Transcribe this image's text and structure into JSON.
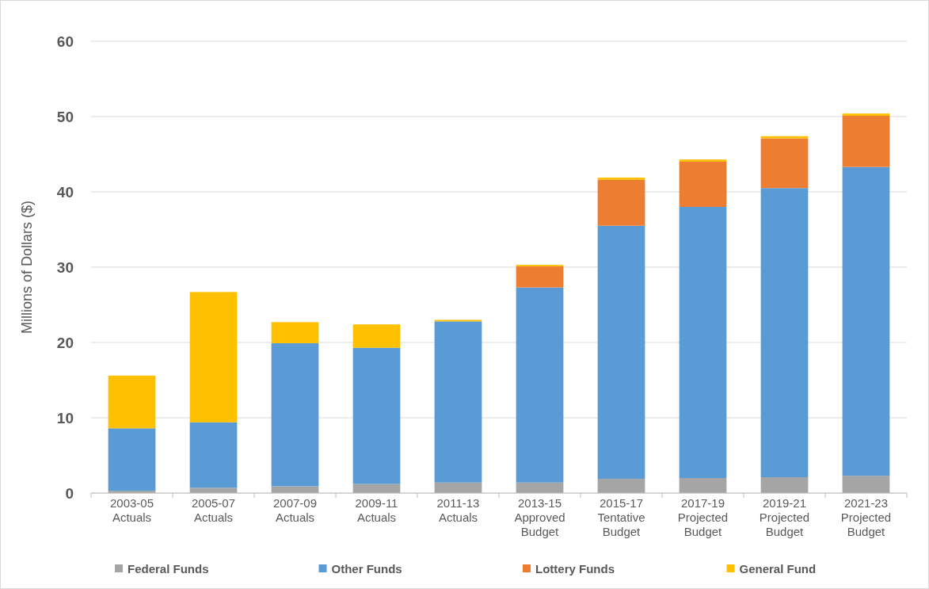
{
  "chart_data": {
    "type": "bar",
    "stacked": true,
    "ylabel": "Millions of Dollars ($)",
    "categories": [
      "2003-05\nActuals",
      "2005-07\nActuals",
      "2007-09\nActuals",
      "2009-11\nActuals",
      "2011-13\nActuals",
      "2013-15\nApproved\nBudget",
      "2015-17\nTentative\nBudget",
      "2017-19\nProjected\nBudget",
      "2019-21\nProjected\nBudget",
      "2021-23\nProjected\nBudget"
    ],
    "series": [
      {
        "name": "Federal Funds",
        "color": "#a5a5a5",
        "values": [
          0.3,
          0.7,
          0.9,
          1.2,
          1.4,
          1.4,
          1.9,
          2.0,
          2.1,
          2.3
        ]
      },
      {
        "name": "Other Funds",
        "color": "#5b9bd5",
        "values": [
          8.3,
          8.7,
          19.0,
          18.1,
          21.4,
          25.9,
          33.6,
          36.0,
          38.4,
          41.0
        ]
      },
      {
        "name": "Lottery Funds",
        "color": "#ed7d31",
        "values": [
          0,
          0,
          0,
          0,
          0,
          2.8,
          6.1,
          6.0,
          6.6,
          6.8
        ]
      },
      {
        "name": "General Fund",
        "color": "#ffc000",
        "values": [
          7.0,
          17.3,
          2.8,
          3.1,
          0.2,
          0.2,
          0.3,
          0.3,
          0.3,
          0.3
        ]
      }
    ],
    "ylim": [
      0,
      60
    ],
    "yticks": [
      0,
      10,
      20,
      30,
      40,
      50,
      60
    ],
    "grid": "y",
    "legend": "bottom"
  }
}
